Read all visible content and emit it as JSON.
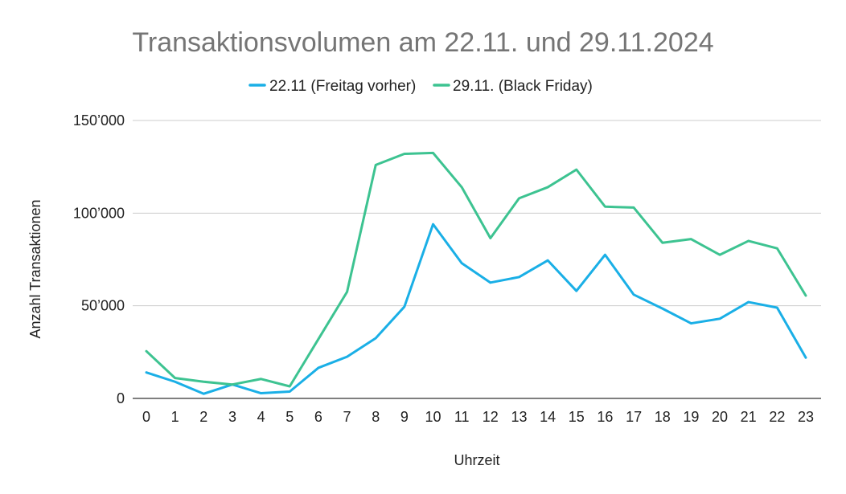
{
  "chart_data": {
    "type": "line",
    "title": "Transaktionsvolumen am 22.11. und 29.11.2024",
    "xlabel": "Uhrzeit",
    "ylabel": "Anzahl Transaktionen",
    "ylim": [
      0,
      150000
    ],
    "yticks": [
      0,
      50000,
      100000,
      150000
    ],
    "ytick_labels": [
      "0",
      "50’000",
      "100’000",
      "150’000"
    ],
    "grid": true,
    "legend_position": "top",
    "categories": [
      "0",
      "1",
      "2",
      "3",
      "4",
      "5",
      "6",
      "7",
      "8",
      "9",
      "10",
      "11",
      "12",
      "13",
      "14",
      "15",
      "16",
      "17",
      "18",
      "19",
      "20",
      "21",
      "22",
      "23"
    ],
    "series": [
      {
        "name": "22.11 (Freitag vorher)",
        "color": "#1aafe6",
        "values": [
          14000,
          9000,
          2500,
          7500,
          2800,
          3700,
          16500,
          22500,
          32500,
          49500,
          94000,
          73000,
          62500,
          65500,
          74500,
          58000,
          77500,
          56000,
          48500,
          40500,
          43000,
          52000,
          49000,
          22000
        ]
      },
      {
        "name": "29.11. (Black Friday)",
        "color": "#3dc391",
        "values": [
          25500,
          11000,
          9000,
          7500,
          10500,
          6500,
          32000,
          57500,
          126000,
          132000,
          132500,
          114000,
          86500,
          108000,
          114000,
          123500,
          103500,
          103000,
          84000,
          86000,
          77500,
          85000,
          81000,
          55500
        ]
      }
    ]
  }
}
